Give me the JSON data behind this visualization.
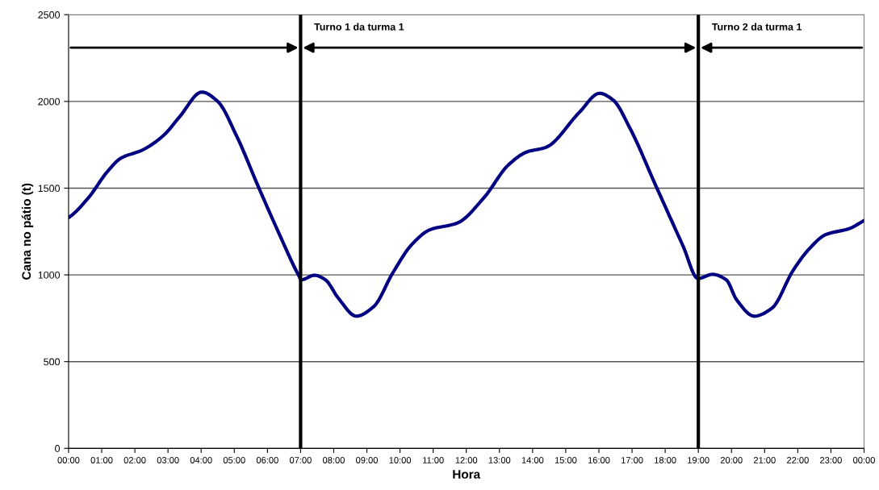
{
  "chart_data": {
    "type": "line",
    "xlabel": "Hora",
    "ylabel": "Cana no pátio (t)",
    "x": [
      0,
      0.04,
      0.61,
      1.17,
      1.58,
      2.23,
      2.87,
      3.36,
      4.02,
      4.5,
      5.06,
      5.72,
      6.37,
      6.94,
      7.02,
      7.42,
      7.74,
      8.15,
      8.68,
      9.2,
      9.78,
      10.35,
      10.9,
      11.73,
      12.54,
      13.27,
      13.83,
      14.4,
      15.41,
      16.02,
      16.43,
      16.92,
      17.73,
      18.54,
      18.99,
      19.43,
      19.84,
      20.16,
      20.69,
      21.22,
      21.86,
      22.35,
      22.84,
      23.57,
      24
    ],
    "series": [
      {
        "color": "#000080",
        "values": [
          1330,
          1335,
          1447,
          1595,
          1673,
          1720,
          1805,
          1914,
          2054,
          2000,
          1805,
          1511,
          1230,
          998,
          972,
          998,
          973,
          863,
          762,
          816,
          1011,
          1174,
          1260,
          1299,
          1447,
          1634,
          1709,
          1735,
          1937,
          2047,
          2008,
          1852,
          1509,
          1166,
          979,
          1003,
          972,
          855,
          762,
          808,
          1026,
          1151,
          1232,
          1268,
          1314
        ]
      }
    ],
    "xlim": [
      0,
      24
    ],
    "xticks": [
      {
        "value": 0,
        "label": "00:00"
      },
      {
        "value": 1,
        "label": "01:00"
      },
      {
        "value": 2,
        "label": "02:00"
      },
      {
        "value": 3,
        "label": "03:00"
      },
      {
        "value": 4,
        "label": "04:00"
      },
      {
        "value": 5,
        "label": "05:00"
      },
      {
        "value": 6,
        "label": "06:00"
      },
      {
        "value": 7,
        "label": "07:00"
      },
      {
        "value": 8,
        "label": "08:00"
      },
      {
        "value": 9,
        "label": "09:00"
      },
      {
        "value": 10,
        "label": "10:00"
      },
      {
        "value": 11,
        "label": "11:00"
      },
      {
        "value": 12,
        "label": "12:00"
      },
      {
        "value": 13,
        "label": "13:00"
      },
      {
        "value": 14,
        "label": "14:00"
      },
      {
        "value": 15,
        "label": "15:00"
      },
      {
        "value": 16,
        "label": "16:00"
      },
      {
        "value": 17,
        "label": "17:00"
      },
      {
        "value": 18,
        "label": "18:00"
      },
      {
        "value": 19,
        "label": "19:00"
      },
      {
        "value": 20,
        "label": "20:00"
      },
      {
        "value": 21,
        "label": "21:00"
      },
      {
        "value": 22,
        "label": "22:00"
      },
      {
        "value": 23,
        "label": "23:00"
      },
      {
        "value": 24,
        "label": "00:00"
      }
    ],
    "ylim": [
      0,
      2500
    ],
    "yticks": [
      0,
      500,
      1000,
      1500,
      2000,
      2500
    ],
    "grid": "y",
    "marker": "none",
    "line_style": "solid",
    "ref_lines": [
      {
        "axis": "x",
        "value": 7,
        "color": "#000000",
        "label": "Turno 1 da turma 1"
      },
      {
        "axis": "x",
        "value": 19,
        "color": "#000000",
        "label": "Turno 2 da turma 1"
      }
    ]
  }
}
